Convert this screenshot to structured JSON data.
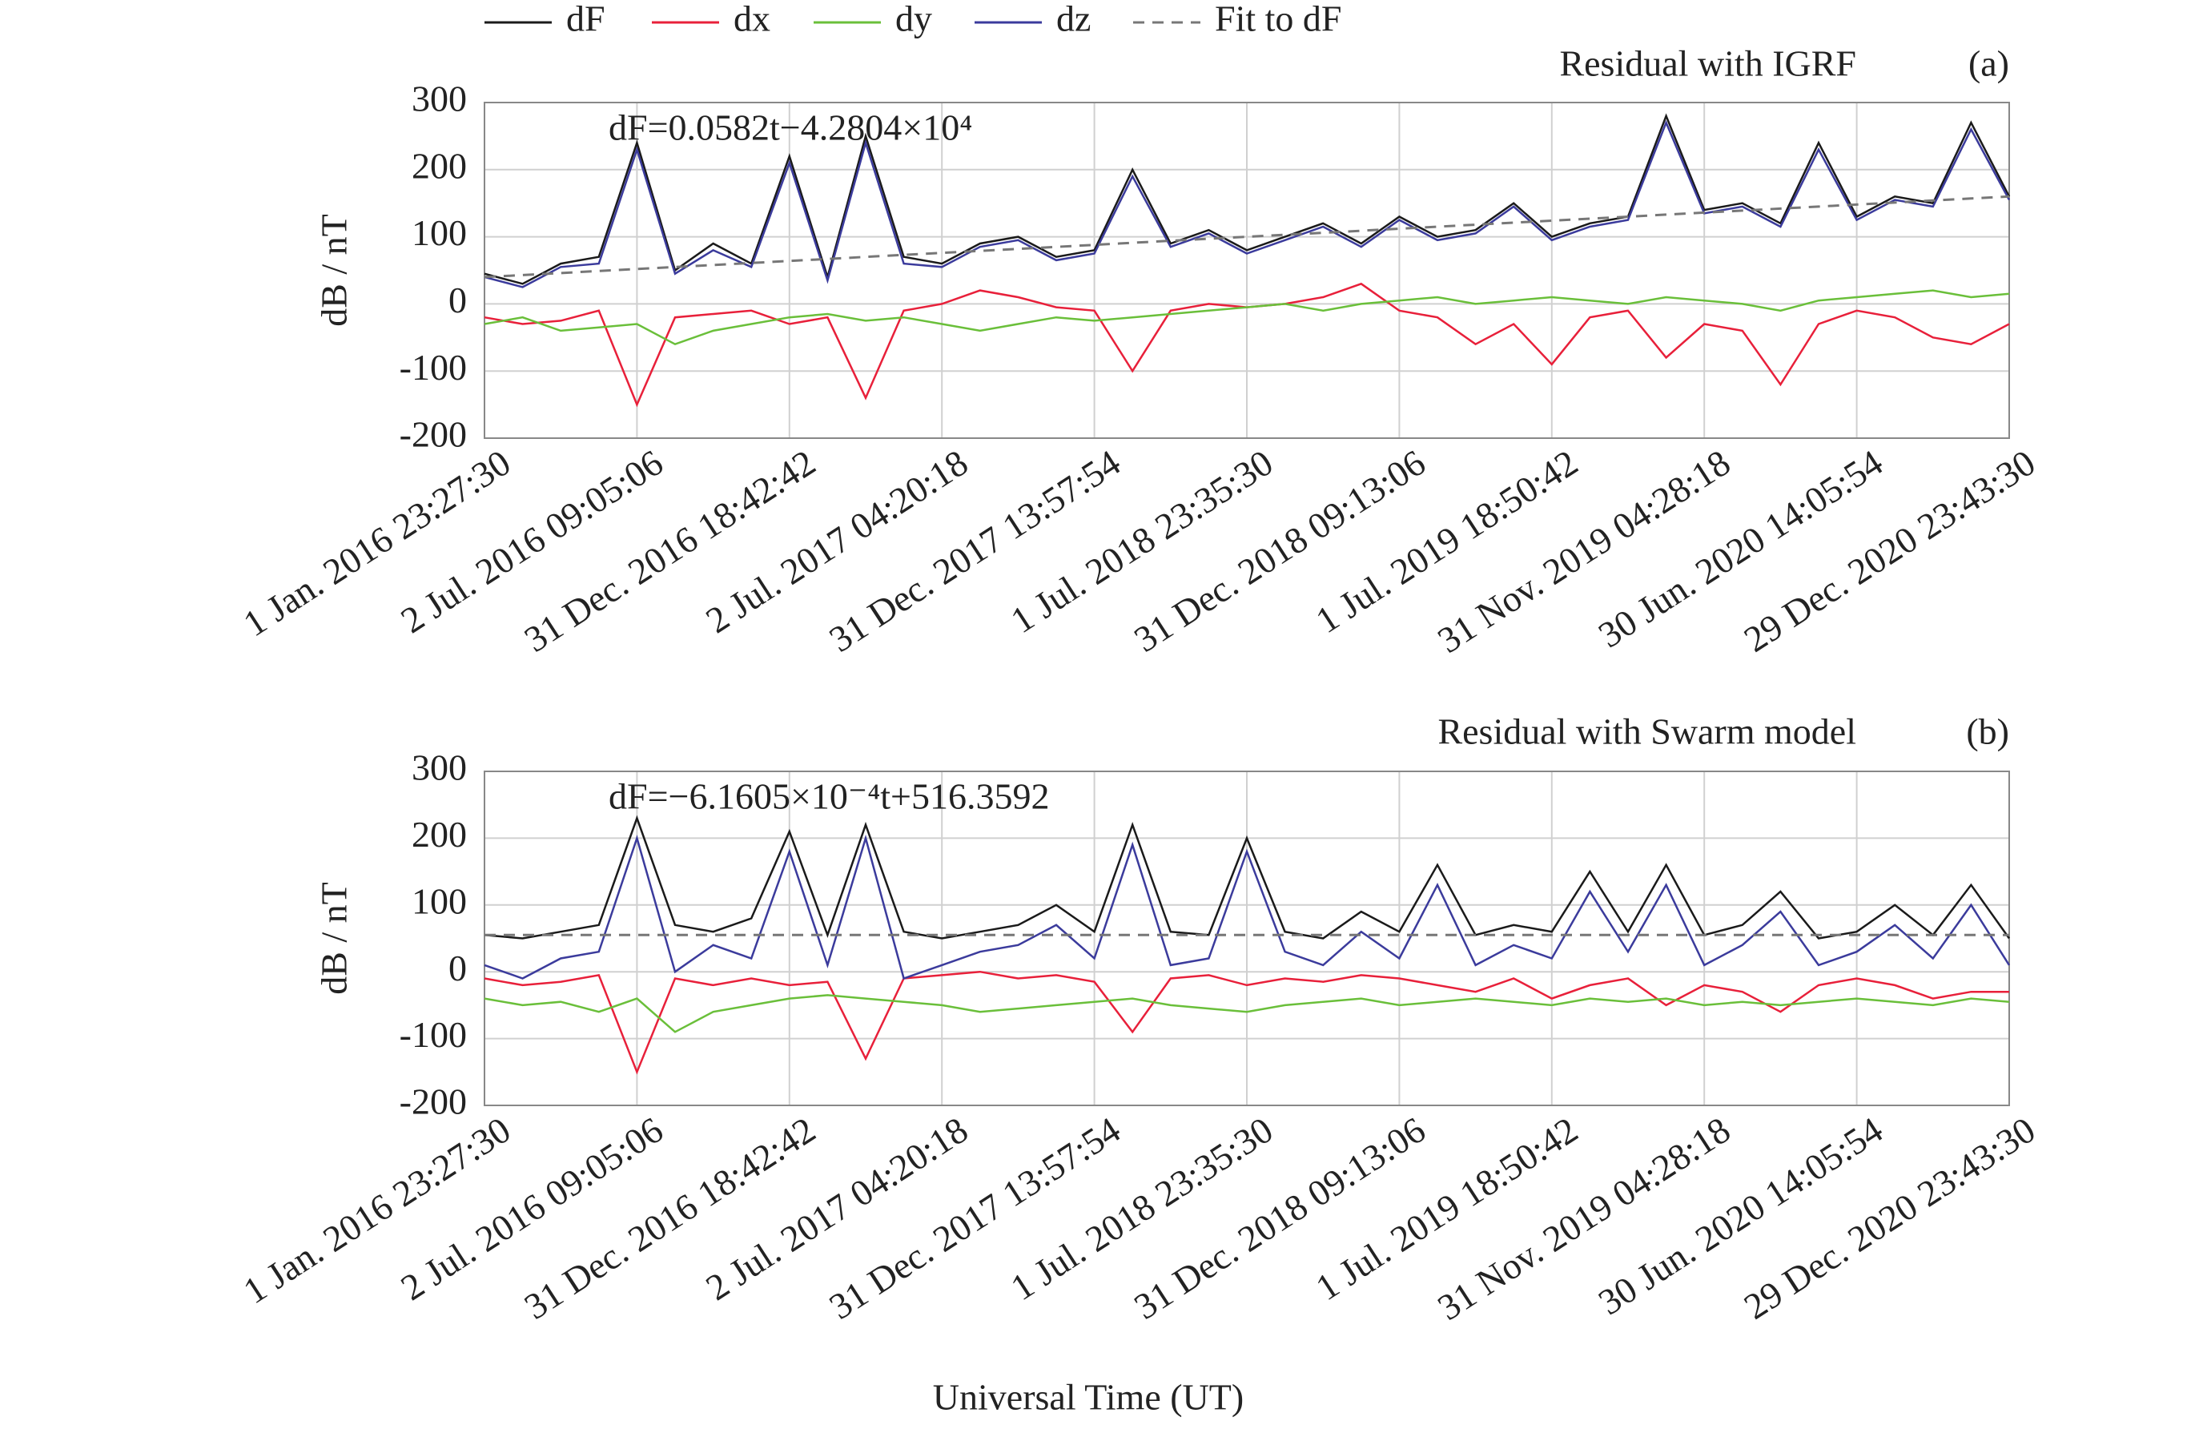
{
  "chart_data": [
    {
      "type": "line",
      "title": "Residual with IGRF",
      "panel": "(a)",
      "annotation": "dF=0.0582t−4.2804×10⁴",
      "ylabel": "dB / nT",
      "categories": [
        "1 Jan. 2016 23:27:30",
        null,
        null,
        null,
        "2 Jul. 2016 09:05:06",
        null,
        null,
        null,
        "31 Dec. 2016 18:42:42",
        null,
        null,
        null,
        "2 Jul. 2017 04:20:18",
        null,
        null,
        null,
        "31 Dec. 2017 13:57:54",
        null,
        null,
        null,
        "1 Jul. 2018 23:35:30",
        null,
        null,
        null,
        "31 Dec. 2018 09:13:06",
        null,
        null,
        null,
        "1 Jul. 2019 18:50:42",
        null,
        null,
        null,
        "31 Nov. 2019 04:28:18",
        null,
        null,
        null,
        "30 Jun. 2020 14:05:54",
        null,
        null,
        null,
        "29 Dec. 2020 23:43:30"
      ],
      "ylim": [
        -200,
        300
      ],
      "yticks": [
        -200,
        -100,
        0,
        100,
        200,
        300
      ],
      "grid": true,
      "series": [
        {
          "name": "dF",
          "color": "#1a1a1a",
          "values": [
            45,
            30,
            60,
            70,
            240,
            50,
            90,
            60,
            220,
            40,
            250,
            70,
            60,
            90,
            100,
            70,
            80,
            200,
            90,
            110,
            80,
            100,
            120,
            90,
            130,
            100,
            110,
            150,
            100,
            120,
            130,
            280,
            140,
            150,
            120,
            240,
            130,
            160,
            150,
            270,
            160
          ]
        },
        {
          "name": "dx",
          "color": "#e8203a",
          "values": [
            -20,
            -30,
            -25,
            -10,
            -150,
            -20,
            -15,
            -10,
            -30,
            -20,
            -140,
            -10,
            0,
            20,
            10,
            -5,
            -10,
            -100,
            -10,
            0,
            -5,
            0,
            10,
            30,
            -10,
            -20,
            -60,
            -30,
            -90,
            -20,
            -10,
            -80,
            -30,
            -40,
            -120,
            -30,
            -10,
            -20,
            -50,
            -60,
            -30
          ]
        },
        {
          "name": "dy",
          "color": "#6abf3a",
          "values": [
            -30,
            -20,
            -40,
            -35,
            -30,
            -60,
            -40,
            -30,
            -20,
            -15,
            -25,
            -20,
            -30,
            -40,
            -30,
            -20,
            -25,
            -20,
            -15,
            -10,
            -5,
            0,
            -10,
            0,
            5,
            10,
            0,
            5,
            10,
            5,
            0,
            10,
            5,
            0,
            -10,
            5,
            10,
            15,
            20,
            10,
            15
          ]
        },
        {
          "name": "dz",
          "color": "#3b3b9c",
          "values": [
            40,
            25,
            55,
            60,
            230,
            45,
            80,
            55,
            210,
            35,
            240,
            60,
            55,
            85,
            95,
            65,
            75,
            190,
            85,
            105,
            75,
            95,
            115,
            85,
            125,
            95,
            105,
            145,
            95,
            115,
            125,
            270,
            135,
            145,
            115,
            230,
            125,
            155,
            145,
            260,
            155
          ]
        },
        {
          "name": "Fit to dF",
          "color": "#777777",
          "linestyle": "dashed",
          "values": [
            40,
            43,
            46,
            49,
            52,
            55,
            58,
            61,
            64,
            67,
            70,
            73,
            76,
            79,
            82,
            85,
            88,
            91,
            94,
            97,
            100,
            103,
            106,
            109,
            112,
            115,
            118,
            121,
            124,
            127,
            130,
            133,
            136,
            139,
            142,
            145,
            148,
            151,
            154,
            157,
            160
          ]
        }
      ]
    },
    {
      "type": "line",
      "title": "Residual with Swarm model",
      "panel": "(b)",
      "annotation": "dF=−6.1605×10⁻⁴t+516.3592",
      "ylabel": "dB / nT",
      "xlabel": "Universal Time (UT)",
      "categories": [
        "1 Jan. 2016 23:27:30",
        null,
        null,
        null,
        "2 Jul. 2016 09:05:06",
        null,
        null,
        null,
        "31 Dec. 2016 18:42:42",
        null,
        null,
        null,
        "2 Jul. 2017 04:20:18",
        null,
        null,
        null,
        "31 Dec. 2017 13:57:54",
        null,
        null,
        null,
        "1 Jul. 2018 23:35:30",
        null,
        null,
        null,
        "31 Dec. 2018 09:13:06",
        null,
        null,
        null,
        "1 Jul. 2019 18:50:42",
        null,
        null,
        null,
        "31 Nov. 2019 04:28:18",
        null,
        null,
        null,
        "30 Jun. 2020 14:05:54",
        null,
        null,
        null,
        "29 Dec. 2020 23:43:30"
      ],
      "ylim": [
        -200,
        300
      ],
      "yticks": [
        -200,
        -100,
        0,
        100,
        200,
        300
      ],
      "grid": true,
      "series": [
        {
          "color": "#1a1a1a",
          "values": [
            55,
            50,
            60,
            70,
            230,
            70,
            60,
            80,
            210,
            55,
            220,
            60,
            50,
            60,
            70,
            100,
            60,
            220,
            60,
            55,
            200,
            60,
            50,
            90,
            60,
            160,
            55,
            70,
            60,
            150,
            60,
            160,
            55,
            70,
            120,
            50,
            60,
            100,
            55,
            130,
            50
          ]
        },
        {
          "color": "#e8203a",
          "values": [
            -10,
            -20,
            -15,
            -5,
            -150,
            -10,
            -20,
            -10,
            -20,
            -15,
            -130,
            -10,
            -5,
            0,
            -10,
            -5,
            -15,
            -90,
            -10,
            -5,
            -20,
            -10,
            -15,
            -5,
            -10,
            -20,
            -30,
            -10,
            -40,
            -20,
            -10,
            -50,
            -20,
            -30,
            -60,
            -20,
            -10,
            -20,
            -40,
            -30,
            -30
          ]
        },
        {
          "color": "#6abf3a",
          "values": [
            -40,
            -50,
            -45,
            -60,
            -40,
            -90,
            -60,
            -50,
            -40,
            -35,
            -40,
            -45,
            -50,
            -60,
            -55,
            -50,
            -45,
            -40,
            -50,
            -55,
            -60,
            -50,
            -45,
            -40,
            -50,
            -45,
            -40,
            -45,
            -50,
            -40,
            -45,
            -40,
            -50,
            -45,
            -50,
            -45,
            -40,
            -45,
            -50,
            -40,
            -45
          ]
        },
        {
          "color": "#3b3b9c",
          "values": [
            10,
            -10,
            20,
            30,
            200,
            0,
            40,
            20,
            180,
            10,
            200,
            -10,
            10,
            30,
            40,
            70,
            20,
            190,
            10,
            20,
            180,
            30,
            10,
            60,
            20,
            130,
            10,
            40,
            20,
            120,
            30,
            130,
            10,
            40,
            90,
            10,
            30,
            70,
            20,
            100,
            10
          ]
        },
        {
          "color": "#777777",
          "linestyle": "dashed",
          "values": [
            55,
            55,
            55,
            55,
            55,
            55,
            55,
            55,
            55,
            55,
            55,
            55,
            55,
            55,
            55,
            55,
            55,
            55,
            55,
            55,
            55,
            55,
            55,
            55,
            55,
            55,
            55,
            55,
            55,
            55,
            55,
            55,
            55,
            55,
            55,
            55,
            55,
            55,
            55,
            55,
            55
          ]
        }
      ]
    }
  ]
}
